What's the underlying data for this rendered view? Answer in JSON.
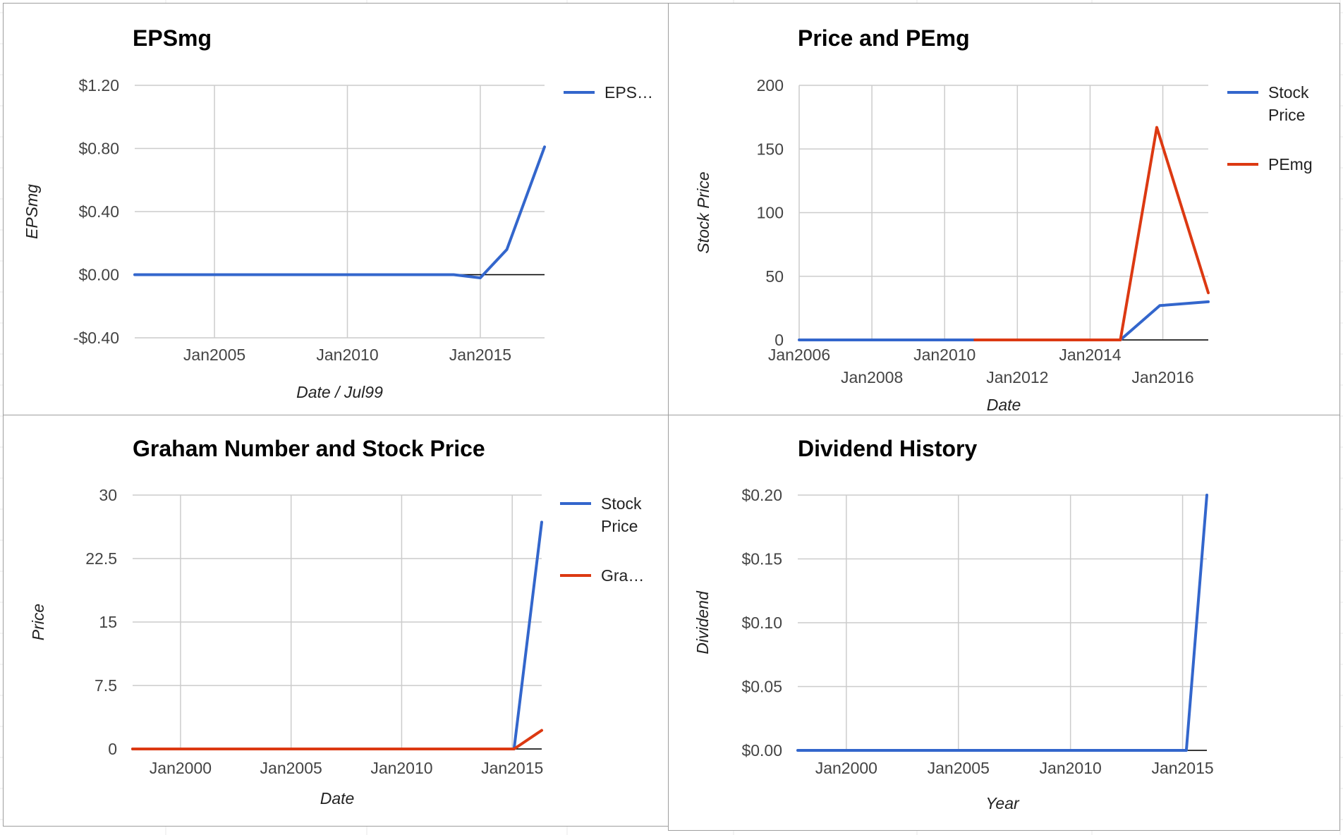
{
  "colors": {
    "stock": "#3366cc",
    "secondary": "#dc3912",
    "grid": "#cccccc",
    "zero": "#000000"
  },
  "chart_data": [
    {
      "type": "line",
      "title": "EPSmg",
      "ylabel": "EPSmg",
      "xlabel": "Date / Jul99",
      "ylim": [
        -0.4,
        1.2
      ],
      "xlim": [
        "2002-01",
        "2017-06"
      ],
      "y_ticks": [
        {
          "v": 1.2,
          "label": "$1.20"
        },
        {
          "v": 0.8,
          "label": "$0.80"
        },
        {
          "v": 0.4,
          "label": "$0.40"
        },
        {
          "v": 0.0,
          "label": "$0.00"
        },
        {
          "v": -0.4,
          "label": "-$0.40"
        }
      ],
      "x_ticks": [
        {
          "v": "2005-01",
          "label": "Jan2005"
        },
        {
          "v": "2010-01",
          "label": "Jan2010"
        },
        {
          "v": "2015-01",
          "label": "Jan2015"
        }
      ],
      "grid": true,
      "legend": {
        "position": "right",
        "entries": [
          {
            "label": "EPS…",
            "color": "#3366cc"
          }
        ]
      },
      "series": [
        {
          "name": "EPS…",
          "color": "#3366cc",
          "points": [
            [
              "2002-01",
              0
            ],
            [
              "2014-01",
              0
            ],
            [
              "2015-01",
              -0.02
            ],
            [
              "2016-01",
              0.16
            ],
            [
              "2017-06",
              0.81
            ]
          ]
        }
      ]
    },
    {
      "type": "line",
      "title": "Price and PEmg",
      "ylabel": "Stock Price",
      "xlabel": "Date",
      "ylim": [
        0,
        200
      ],
      "xlim": [
        "2006-01",
        "2017-04"
      ],
      "y_ticks": [
        {
          "v": 200,
          "label": "200"
        },
        {
          "v": 150,
          "label": "150"
        },
        {
          "v": 100,
          "label": "100"
        },
        {
          "v": 50,
          "label": "50"
        },
        {
          "v": 0,
          "label": "0"
        }
      ],
      "x_ticks": [
        {
          "v": "2006-01",
          "label": "Jan2006",
          "row": 0
        },
        {
          "v": "2008-01",
          "label": "Jan2008",
          "row": 1
        },
        {
          "v": "2010-01",
          "label": "Jan2010",
          "row": 0
        },
        {
          "v": "2012-01",
          "label": "Jan2012",
          "row": 1
        },
        {
          "v": "2014-01",
          "label": "Jan2014",
          "row": 0
        },
        {
          "v": "2016-01",
          "label": "Jan2016",
          "row": 1
        }
      ],
      "grid": true,
      "legend": {
        "position": "right",
        "entries": [
          {
            "label": [
              "Stock",
              "Price"
            ],
            "color": "#3366cc"
          },
          {
            "label": [
              "PEmg"
            ],
            "color": "#dc3912"
          }
        ]
      },
      "series": [
        {
          "name": "Stock Price",
          "color": "#3366cc",
          "points": [
            [
              "2006-01",
              0
            ],
            [
              "2014-11",
              0
            ],
            [
              "2015-12",
              27
            ],
            [
              "2017-04",
              30
            ]
          ]
        },
        {
          "name": "PEmg",
          "color": "#dc3912",
          "points": [
            [
              "2010-11",
              0
            ],
            [
              "2014-11",
              0
            ],
            [
              "2015-11",
              167
            ],
            [
              "2017-04",
              37
            ]
          ]
        }
      ]
    },
    {
      "type": "line",
      "title": "Graham Number and Stock Price",
      "ylabel": "Price",
      "xlabel": "Date",
      "ylim": [
        0,
        30
      ],
      "xlim": [
        "1997-11",
        "2016-05"
      ],
      "y_ticks": [
        {
          "v": 30,
          "label": "30"
        },
        {
          "v": 22.5,
          "label": "22.5"
        },
        {
          "v": 15,
          "label": "15"
        },
        {
          "v": 7.5,
          "label": "7.5"
        },
        {
          "v": 0,
          "label": "0"
        }
      ],
      "x_ticks": [
        {
          "v": "2000-01",
          "label": "Jan2000"
        },
        {
          "v": "2005-01",
          "label": "Jan2005"
        },
        {
          "v": "2010-01",
          "label": "Jan2010"
        },
        {
          "v": "2015-01",
          "label": "Jan2015"
        }
      ],
      "grid": true,
      "legend": {
        "position": "right",
        "entries": [
          {
            "label": [
              "Stock",
              "Price"
            ],
            "color": "#3366cc"
          },
          {
            "label": [
              "Gra…"
            ],
            "color": "#dc3912"
          }
        ]
      },
      "series": [
        {
          "name": "Stock Price",
          "color": "#3366cc",
          "points": [
            [
              "1997-11",
              0
            ],
            [
              "2015-02",
              0
            ],
            [
              "2016-05",
              26.8
            ]
          ]
        },
        {
          "name": "Gra…",
          "color": "#dc3912",
          "points": [
            [
              "1997-11",
              0
            ],
            [
              "2015-02",
              0
            ],
            [
              "2016-05",
              2.2
            ]
          ]
        }
      ]
    },
    {
      "type": "line",
      "title": "Dividend History",
      "ylabel": "Dividend",
      "xlabel": "Year",
      "ylim": [
        0,
        0.2
      ],
      "xlim": [
        "1997-11",
        "2016-02"
      ],
      "y_ticks": [
        {
          "v": 0.2,
          "label": "$0.20"
        },
        {
          "v": 0.15,
          "label": "$0.15"
        },
        {
          "v": 0.1,
          "label": "$0.10"
        },
        {
          "v": 0.05,
          "label": "$0.05"
        },
        {
          "v": 0.0,
          "label": "$0.00"
        }
      ],
      "x_ticks": [
        {
          "v": "2000-01",
          "label": "Jan2000"
        },
        {
          "v": "2005-01",
          "label": "Jan2005"
        },
        {
          "v": "2010-01",
          "label": "Jan2010"
        },
        {
          "v": "2015-01",
          "label": "Jan2015"
        }
      ],
      "grid": true,
      "legend": null,
      "series": [
        {
          "name": "",
          "color": "#3366cc",
          "points": [
            [
              "1997-11",
              0
            ],
            [
              "2015-03",
              0
            ],
            [
              "2016-02",
              0.2
            ]
          ]
        }
      ]
    }
  ]
}
